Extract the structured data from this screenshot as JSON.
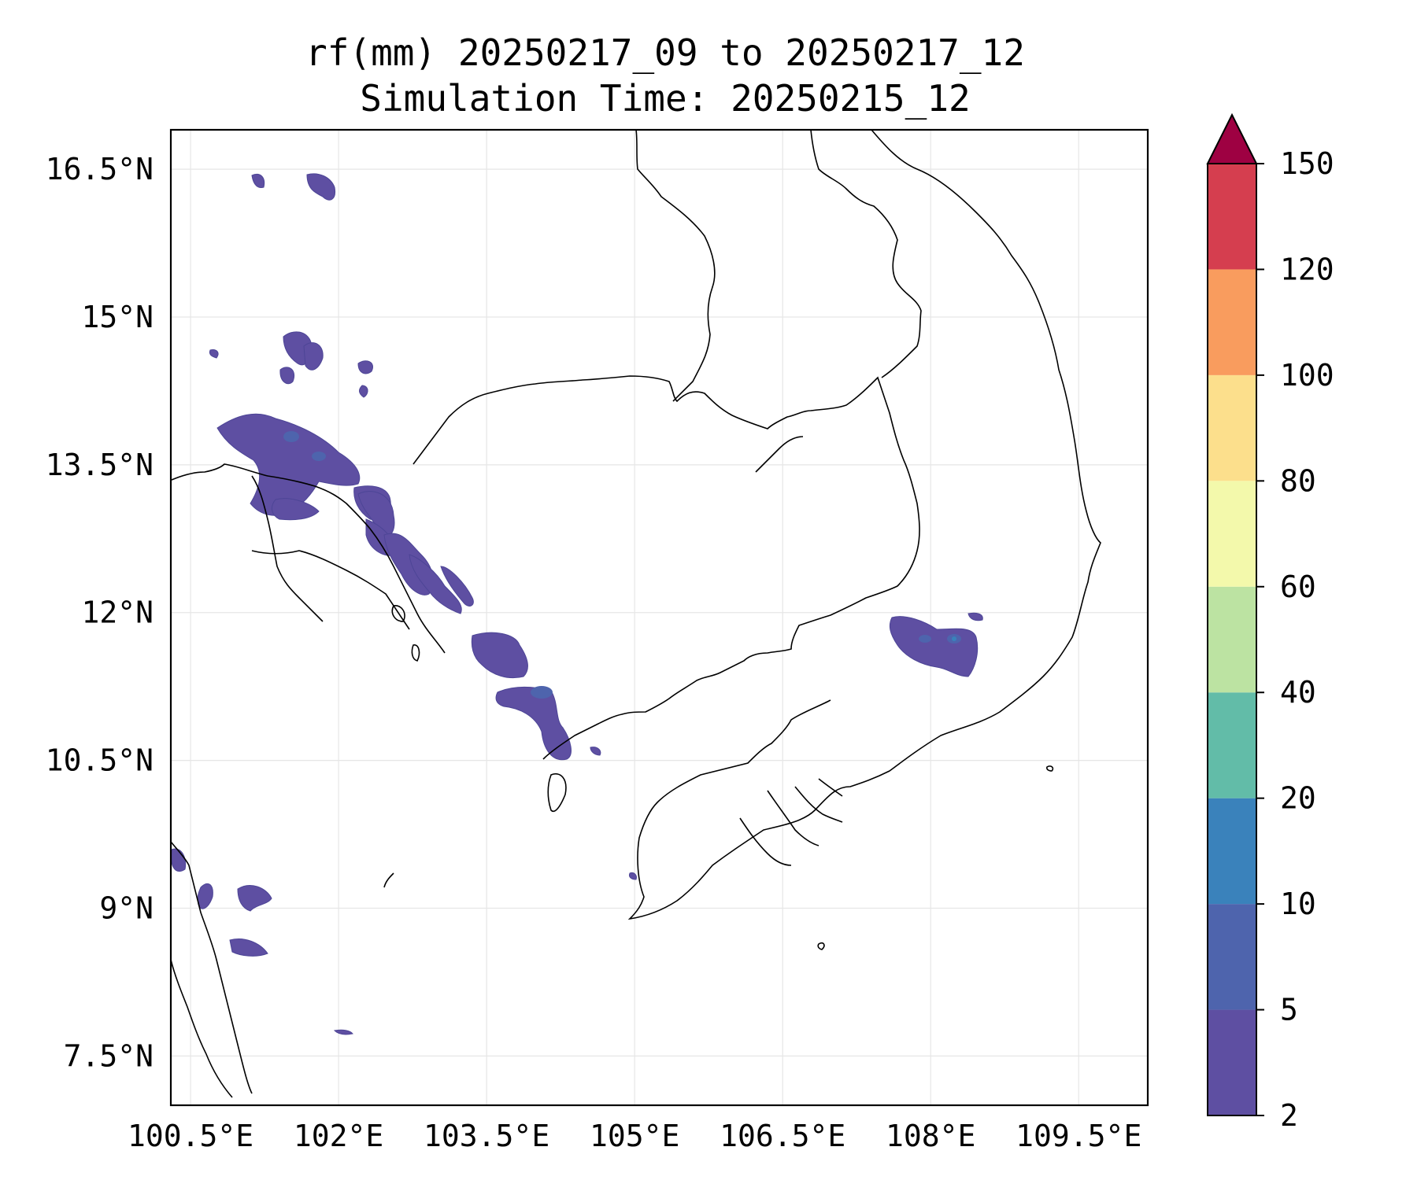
{
  "title": "rf(mm) 20250217_09 to 20250217_12",
  "subtitle": "Simulation Time: 20250215_12",
  "map": {
    "lon_range": [
      100.3,
      110.2
    ],
    "lat_range": [
      7.0,
      16.9
    ],
    "lon_ticks": [
      "100.5°E",
      "102°E",
      "103.5°E",
      "105°E",
      "106.5°E",
      "108°E",
      "109.5°E"
    ],
    "lat_ticks": [
      "16.5°N",
      "15°N",
      "13.5°N",
      "12°N",
      "10.5°N",
      "9°N",
      "7.5°N"
    ],
    "lon_tick_values": [
      100.5,
      102.0,
      103.5,
      105.0,
      106.5,
      108.0,
      109.5
    ],
    "lat_tick_values": [
      16.5,
      15.0,
      13.5,
      12.0,
      10.5,
      9.0,
      7.5
    ],
    "gridlines": true
  },
  "colorbar": {
    "levels": [
      2,
      5,
      10,
      20,
      40,
      60,
      80,
      100,
      120,
      150
    ],
    "labels": [
      "2",
      "5",
      "10",
      "20",
      "40",
      "60",
      "80",
      "100",
      "120",
      "150"
    ],
    "colors": [
      "#5e4fa2",
      "#4e64ad",
      "#3a82bb",
      "#62bca8",
      "#bce3a2",
      "#f3f9ab",
      "#fcdf8c",
      "#f99c5e",
      "#d53e4f"
    ],
    "extend_color": "#9e0142",
    "extend": "max"
  },
  "colors": {
    "rain_low": "#5e4fa2",
    "rain_mid": "#4e64ad",
    "rain_high": "#3a82bb",
    "coastline": "#000000",
    "grid": "#e6e6e6"
  }
}
